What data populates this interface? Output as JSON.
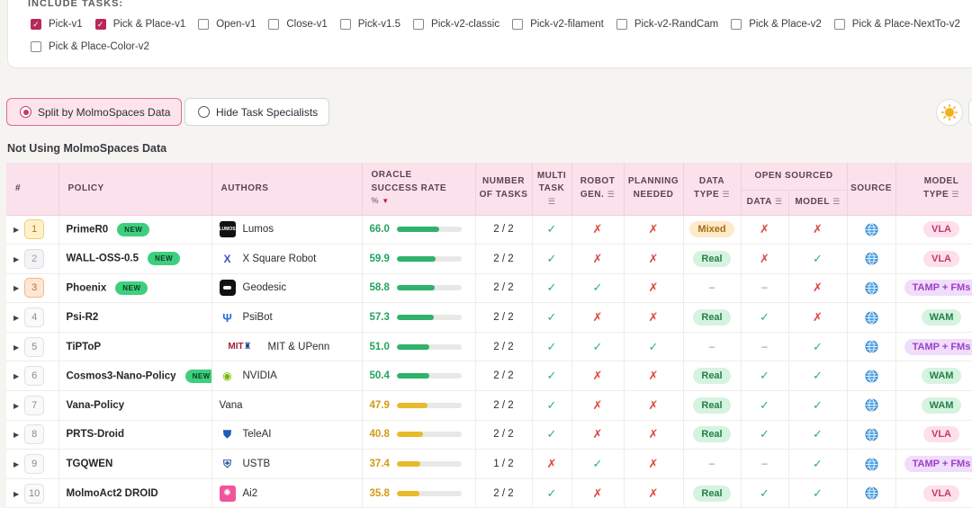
{
  "tasks": {
    "title": "INCLUDE TASKS:",
    "options": [
      {
        "label": "Pick-v1",
        "checked": true
      },
      {
        "label": "Pick & Place-v1",
        "checked": true
      },
      {
        "label": "Open-v1",
        "checked": false
      },
      {
        "label": "Close-v1",
        "checked": false
      },
      {
        "label": "Pick-v1.5",
        "checked": false
      },
      {
        "label": "Pick-v2-classic",
        "checked": false
      },
      {
        "label": "Pick-v2-filament",
        "checked": false
      },
      {
        "label": "Pick-v2-RandCam",
        "checked": false
      },
      {
        "label": "Pick & Place-v2",
        "checked": false
      },
      {
        "label": "Pick & Place-NextTo-v2",
        "checked": false
      },
      {
        "label": "Pick & Place-Color-v2",
        "checked": false
      }
    ]
  },
  "toggles": {
    "split": "Split by MolmoSpaces Data",
    "hide": "Hide Task Specialists"
  },
  "section_title": "Not Using MolmoSpaces Data",
  "headers": {
    "rank": "#",
    "policy": "POLICY",
    "authors": "AUTHORS",
    "oracle": "ORACLE",
    "success_rate": "SUCCESS RATE",
    "pct": "%",
    "number": "NUMBER",
    "of_tasks": "OF TASKS",
    "multi": "MULTI",
    "task": "TASK",
    "robot": "ROBOT",
    "gen": "GEN.",
    "planning": "PLANNING",
    "needed": "NEEDED",
    "data": "DATA",
    "type": "TYPE",
    "open_sourced": "OPEN SOURCED",
    "os_data": "DATA",
    "os_model": "MODEL",
    "source": "SOURCE",
    "model": "MODEL",
    "model_type": "TYPE"
  },
  "colors": {
    "accent": "#c23a6a",
    "header_bg": "#fbe1ec",
    "green": "#2fb26a",
    "yellow": "#e8b92a",
    "red": "#e0443d"
  },
  "rows": [
    {
      "rank": "1",
      "medal": "gold",
      "policy": "PrimeR0",
      "is_new": true,
      "author": "Lumos",
      "logo": "lumos",
      "score": "66.0",
      "rate": 66.0,
      "tasks": "2 / 2",
      "multi": "check",
      "robot_gen": "cross",
      "planning": "cross",
      "data_type": "Mixed",
      "os_data": "cross",
      "os_model": "cross",
      "model_type": "VLA"
    },
    {
      "rank": "2",
      "medal": "silver",
      "policy": "WALL-OSS-0.5",
      "is_new": true,
      "author": "X Square Robot",
      "logo": "xsquare",
      "score": "59.9",
      "rate": 59.9,
      "tasks": "2 / 2",
      "multi": "check",
      "robot_gen": "cross",
      "planning": "cross",
      "data_type": "Real",
      "os_data": "cross",
      "os_model": "check",
      "model_type": "VLA"
    },
    {
      "rank": "3",
      "medal": "bronze",
      "policy": "Phoenix",
      "is_new": true,
      "author": "Geodesic",
      "logo": "geodesic",
      "score": "58.8",
      "rate": 58.8,
      "tasks": "2 / 2",
      "multi": "check",
      "robot_gen": "check",
      "planning": "cross",
      "data_type": "–",
      "os_data": "–",
      "os_model": "cross",
      "model_type": "TAMP + FMs"
    },
    {
      "rank": "4",
      "medal": "",
      "policy": "Psi-R2",
      "is_new": false,
      "author": "PsiBot",
      "logo": "psibot",
      "score": "57.3",
      "rate": 57.3,
      "tasks": "2 / 2",
      "multi": "check",
      "robot_gen": "cross",
      "planning": "cross",
      "data_type": "Real",
      "os_data": "check",
      "os_model": "cross",
      "model_type": "WAM"
    },
    {
      "rank": "5",
      "medal": "",
      "policy": "TiPToP",
      "is_new": false,
      "author": "MIT & UPenn",
      "logo": "mit",
      "score": "51.0",
      "rate": 51.0,
      "tasks": "2 / 2",
      "multi": "check",
      "robot_gen": "check",
      "planning": "check",
      "data_type": "–",
      "os_data": "–",
      "os_model": "check",
      "model_type": "TAMP + FMs"
    },
    {
      "rank": "6",
      "medal": "",
      "policy": "Cosmos3-Nano-Policy",
      "is_new": true,
      "author": "NVIDIA",
      "logo": "nvidia",
      "score": "50.4",
      "rate": 50.4,
      "tasks": "2 / 2",
      "multi": "check",
      "robot_gen": "cross",
      "planning": "cross",
      "data_type": "Real",
      "os_data": "check",
      "os_model": "check",
      "model_type": "WAM"
    },
    {
      "rank": "7",
      "medal": "",
      "policy": "Vana-Policy",
      "is_new": false,
      "author": "Vana",
      "logo": "",
      "score": "47.9",
      "rate": 47.9,
      "tasks": "2 / 2",
      "multi": "check",
      "robot_gen": "cross",
      "planning": "cross",
      "data_type": "Real",
      "os_data": "check",
      "os_model": "check",
      "model_type": "WAM"
    },
    {
      "rank": "8",
      "medal": "",
      "policy": "PRTS-Droid",
      "is_new": false,
      "author": "TeleAI",
      "logo": "teleai",
      "score": "40.8",
      "rate": 40.8,
      "tasks": "2 / 2",
      "multi": "check",
      "robot_gen": "cross",
      "planning": "cross",
      "data_type": "Real",
      "os_data": "check",
      "os_model": "check",
      "model_type": "VLA"
    },
    {
      "rank": "9",
      "medal": "",
      "policy": "TGQWEN",
      "is_new": false,
      "author": "USTB",
      "logo": "ustb",
      "score": "37.4",
      "rate": 37.4,
      "tasks": "1 / 2",
      "multi": "cross",
      "robot_gen": "check",
      "planning": "cross",
      "data_type": "–",
      "os_data": "–",
      "os_model": "check",
      "model_type": "TAMP + FMs"
    },
    {
      "rank": "10",
      "medal": "",
      "policy": "MolmoAct2 DROID",
      "is_new": false,
      "author": "Ai2",
      "logo": "ai2",
      "score": "35.8",
      "rate": 35.8,
      "tasks": "2 / 2",
      "multi": "check",
      "robot_gen": "cross",
      "planning": "cross",
      "data_type": "Real",
      "os_data": "check",
      "os_model": "check",
      "model_type": "VLA"
    }
  ],
  "new_label": "NEW"
}
